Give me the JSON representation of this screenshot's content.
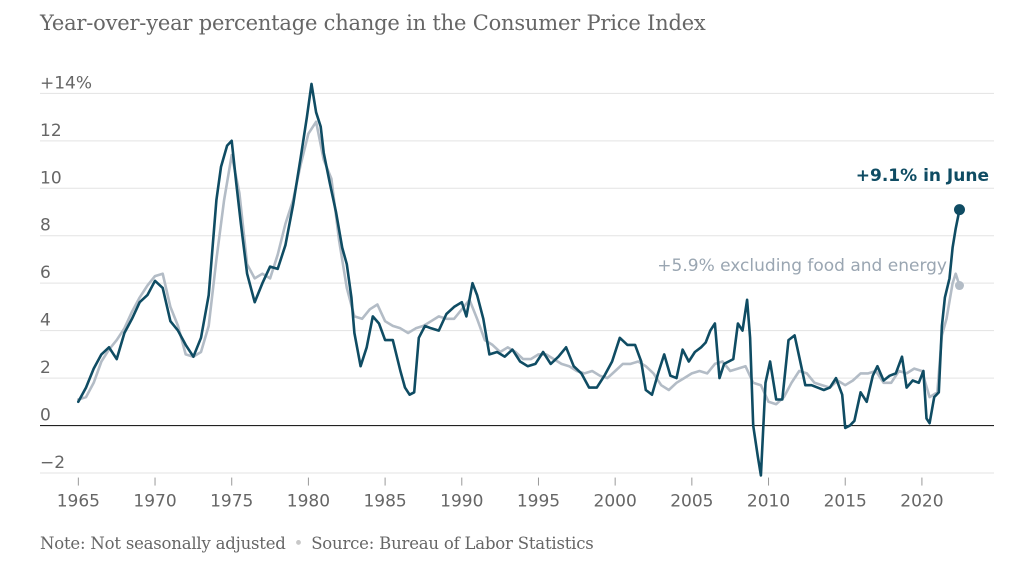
{
  "title": "Year-over-year percentage change in the Consumer Price Index",
  "footer": {
    "note": "Note: Not seasonally adjusted",
    "separator": "•",
    "source": "Source: Bureau of Labor Statistics"
  },
  "colors": {
    "headline": "#0f4c63",
    "core": "#b3bcc6",
    "grid": "#e3e3e3",
    "zero": "#222222",
    "text": "#666666"
  },
  "chart_data": {
    "type": "line",
    "title": "Year-over-year percentage change in the Consumer Price Index",
    "xlabel": "",
    "ylabel": "",
    "xlim": [
      1962.5,
      2024.7
    ],
    "ylim": [
      -2.8,
      14.9
    ],
    "x_ticks": [
      1965,
      1970,
      1975,
      1980,
      1985,
      1990,
      1995,
      2000,
      2005,
      2010,
      2015,
      2020
    ],
    "x_tick_labels": [
      "1965",
      "1970",
      "1975",
      "1980",
      "1985",
      "1990",
      "1995",
      "2000",
      "2005",
      "2010",
      "2015",
      "2020"
    ],
    "y_ticks": [
      -2,
      0,
      2,
      4,
      6,
      8,
      10,
      12,
      14
    ],
    "y_tick_labels": [
      "−2",
      "0",
      "2",
      "4",
      "6",
      "8",
      "10",
      "12",
      "+14%"
    ],
    "grid": true,
    "annotations": {
      "headline": "+9.1% in June",
      "core": "+5.9% excluding food and energy"
    },
    "series": [
      {
        "role": "core",
        "x": [
          1965.0,
          1965.5,
          1966.0,
          1966.5,
          1967.0,
          1967.5,
          1968.0,
          1968.5,
          1969.0,
          1969.5,
          1970.0,
          1970.5,
          1971.0,
          1971.5,
          1972.0,
          1972.5,
          1973.0,
          1973.5,
          1974.0,
          1974.5,
          1975.0,
          1975.5,
          1976.0,
          1976.5,
          1977.0,
          1977.5,
          1978.0,
          1978.5,
          1979.0,
          1979.5,
          1980.0,
          1980.5,
          1981.0,
          1981.5,
          1982.0,
          1982.5,
          1983.0,
          1983.5,
          1984.0,
          1984.5,
          1985.0,
          1985.5,
          1986.0,
          1986.5,
          1987.0,
          1987.5,
          1988.0,
          1988.5,
          1989.0,
          1989.5,
          1990.0,
          1990.5,
          1991.0,
          1991.5,
          1992.0,
          1992.5,
          1993.0,
          1993.5,
          1994.0,
          1994.5,
          1995.0,
          1995.5,
          1996.0,
          1996.5,
          1997.0,
          1997.5,
          1998.0,
          1998.5,
          1999.0,
          1999.5,
          2000.0,
          2000.5,
          2001.0,
          2001.5,
          2002.0,
          2002.5,
          2003.0,
          2003.5,
          2004.0,
          2004.5,
          2005.0,
          2005.5,
          2006.0,
          2006.5,
          2007.0,
          2007.5,
          2008.0,
          2008.5,
          2009.0,
          2009.5,
          2010.0,
          2010.5,
          2011.0,
          2011.5,
          2012.0,
          2012.5,
          2013.0,
          2013.5,
          2014.0,
          2014.5,
          2015.0,
          2015.5,
          2016.0,
          2016.5,
          2017.0,
          2017.5,
          2018.0,
          2018.5,
          2019.0,
          2019.5,
          2020.0,
          2020.5,
          2021.0,
          2021.3,
          2021.6,
          2022.0,
          2022.2,
          2022.45
        ],
        "y": [
          1.1,
          1.2,
          1.8,
          2.7,
          3.2,
          3.6,
          4.1,
          4.8,
          5.4,
          5.9,
          6.3,
          6.4,
          5.0,
          4.2,
          3.0,
          2.9,
          3.1,
          4.2,
          7.0,
          9.5,
          11.4,
          9.8,
          6.8,
          6.2,
          6.4,
          6.2,
          7.2,
          8.5,
          9.5,
          11.0,
          12.3,
          12.8,
          11.2,
          10.4,
          7.8,
          5.8,
          4.6,
          4.5,
          4.9,
          5.1,
          4.4,
          4.2,
          4.1,
          3.9,
          4.1,
          4.2,
          4.4,
          4.6,
          4.5,
          4.5,
          4.9,
          5.3,
          4.5,
          3.6,
          3.4,
          3.1,
          3.3,
          3.1,
          2.8,
          2.8,
          3.0,
          3.0,
          2.8,
          2.6,
          2.5,
          2.3,
          2.2,
          2.3,
          2.1,
          2.0,
          2.3,
          2.6,
          2.6,
          2.7,
          2.5,
          2.2,
          1.7,
          1.5,
          1.8,
          2.0,
          2.2,
          2.3,
          2.2,
          2.6,
          2.7,
          2.3,
          2.4,
          2.5,
          1.8,
          1.7,
          1.0,
          0.9,
          1.2,
          1.8,
          2.3,
          2.2,
          1.8,
          1.7,
          1.6,
          1.9,
          1.7,
          1.9,
          2.2,
          2.2,
          2.3,
          1.8,
          1.8,
          2.3,
          2.2,
          2.4,
          2.3,
          1.2,
          1.4,
          3.8,
          4.5,
          6.0,
          6.4,
          5.9
        ]
      },
      {
        "role": "headline",
        "x": [
          1965.0,
          1965.5,
          1966.0,
          1966.5,
          1967.0,
          1967.5,
          1968.0,
          1968.5,
          1969.0,
          1969.5,
          1970.0,
          1970.5,
          1971.0,
          1971.5,
          1972.0,
          1972.5,
          1973.0,
          1973.5,
          1974.0,
          1974.3,
          1974.7,
          1975.0,
          1975.3,
          1975.6,
          1976.0,
          1976.5,
          1977.0,
          1977.5,
          1978.0,
          1978.5,
          1979.0,
          1979.5,
          1979.9,
          1980.2,
          1980.5,
          1980.8,
          1981.0,
          1981.4,
          1981.8,
          1982.2,
          1982.5,
          1982.8,
          1983.0,
          1983.4,
          1983.8,
          1984.2,
          1984.6,
          1985.0,
          1985.5,
          1986.0,
          1986.3,
          1986.6,
          1986.9,
          1987.2,
          1987.6,
          1988.0,
          1988.5,
          1989.0,
          1989.5,
          1990.0,
          1990.3,
          1990.7,
          1991.0,
          1991.4,
          1991.8,
          1992.3,
          1992.8,
          1993.3,
          1993.8,
          1994.3,
          1994.8,
          1995.3,
          1995.8,
          1996.3,
          1996.8,
          1997.3,
          1997.8,
          1998.3,
          1998.8,
          1999.3,
          1999.8,
          2000.3,
          2000.8,
          2001.3,
          2001.7,
          2002.0,
          2002.4,
          2002.8,
          2003.2,
          2003.6,
          2004.0,
          2004.4,
          2004.8,
          2005.2,
          2005.6,
          2005.9,
          2006.2,
          2006.5,
          2006.8,
          2007.1,
          2007.4,
          2007.7,
          2008.0,
          2008.3,
          2008.6,
          2008.8,
          2009.0,
          2009.3,
          2009.5,
          2009.8,
          2010.1,
          2010.5,
          2010.9,
          2011.3,
          2011.7,
          2012.0,
          2012.4,
          2012.8,
          2013.2,
          2013.6,
          2014.0,
          2014.4,
          2014.8,
          2015.0,
          2015.3,
          2015.6,
          2016.0,
          2016.4,
          2016.8,
          2017.1,
          2017.5,
          2017.9,
          2018.3,
          2018.7,
          2019.0,
          2019.4,
          2019.8,
          2020.1,
          2020.3,
          2020.5,
          2020.8,
          2021.1,
          2021.3,
          2021.5,
          2021.8,
          2022.0,
          2022.2,
          2022.45
        ],
        "y": [
          1.0,
          1.6,
          2.4,
          3.0,
          3.3,
          2.8,
          3.9,
          4.5,
          5.2,
          5.5,
          6.1,
          5.8,
          4.4,
          4.0,
          3.4,
          2.9,
          3.7,
          5.5,
          9.5,
          10.9,
          11.8,
          12.0,
          10.2,
          8.5,
          6.4,
          5.2,
          6.0,
          6.7,
          6.6,
          7.6,
          9.3,
          11.3,
          13.0,
          14.4,
          13.2,
          12.6,
          11.5,
          10.2,
          9.0,
          7.5,
          6.8,
          5.4,
          3.9,
          2.5,
          3.3,
          4.6,
          4.3,
          3.6,
          3.6,
          2.3,
          1.6,
          1.3,
          1.4,
          3.7,
          4.2,
          4.1,
          4.0,
          4.7,
          5.0,
          5.2,
          4.6,
          6.0,
          5.5,
          4.5,
          3.0,
          3.1,
          2.9,
          3.2,
          2.7,
          2.5,
          2.6,
          3.1,
          2.6,
          2.9,
          3.3,
          2.5,
          2.2,
          1.6,
          1.6,
          2.1,
          2.7,
          3.7,
          3.4,
          3.4,
          2.7,
          1.5,
          1.3,
          2.2,
          3.0,
          2.1,
          2.0,
          3.2,
          2.7,
          3.1,
          3.3,
          3.5,
          4.0,
          4.3,
          2.0,
          2.6,
          2.7,
          2.8,
          4.3,
          4.0,
          5.3,
          3.7,
          0.0,
          -1.3,
          -2.1,
          1.8,
          2.7,
          1.1,
          1.1,
          3.6,
          3.8,
          2.9,
          1.7,
          1.7,
          1.6,
          1.5,
          1.6,
          2.0,
          1.3,
          -0.1,
          0.0,
          0.2,
          1.4,
          1.0,
          2.1,
          2.5,
          1.9,
          2.1,
          2.2,
          2.9,
          1.6,
          1.9,
          1.8,
          2.3,
          0.3,
          0.1,
          1.2,
          1.4,
          4.2,
          5.4,
          6.2,
          7.5,
          8.3,
          9.1
        ]
      }
    ]
  }
}
